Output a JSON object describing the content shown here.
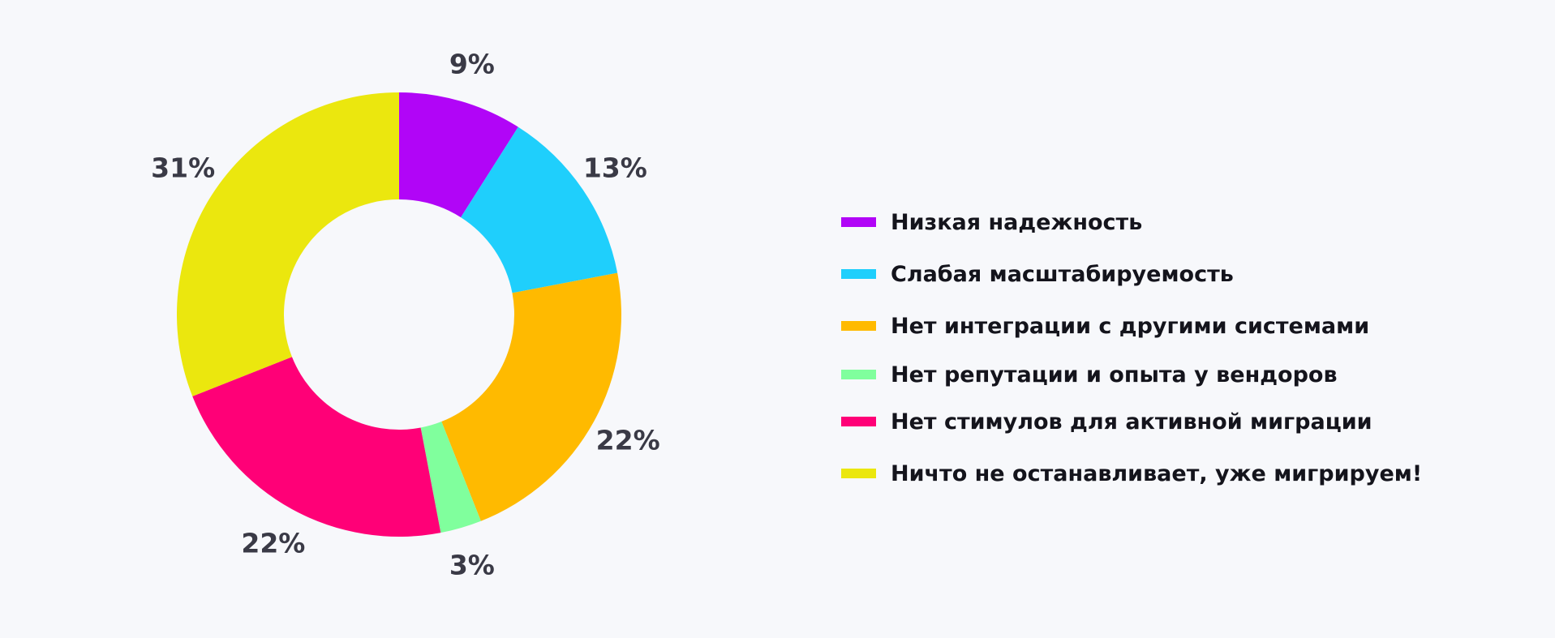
{
  "chart_data": {
    "type": "pie",
    "style": "donut",
    "title": "",
    "legend_placement": "right",
    "categories": [
      "Низкая надежность",
      "Слабая масштабируемость",
      "Нет интеграции с другими системами",
      "Нет репутации и опыта у вендоров",
      "Нет стимулов для активной миграции",
      "Ничто не останавливает, уже мигрируем!"
    ],
    "values": [
      9,
      13,
      22,
      3,
      22,
      31
    ],
    "value_labels": [
      "9%",
      "13%",
      "22%",
      "3%",
      "22%",
      "31%"
    ],
    "colors": [
      "#b105f7",
      "#1fcffc",
      "#ffba00",
      "#80ff9d",
      "#ff0077",
      "#ebe70e"
    ],
    "start": "top, clockwise"
  }
}
